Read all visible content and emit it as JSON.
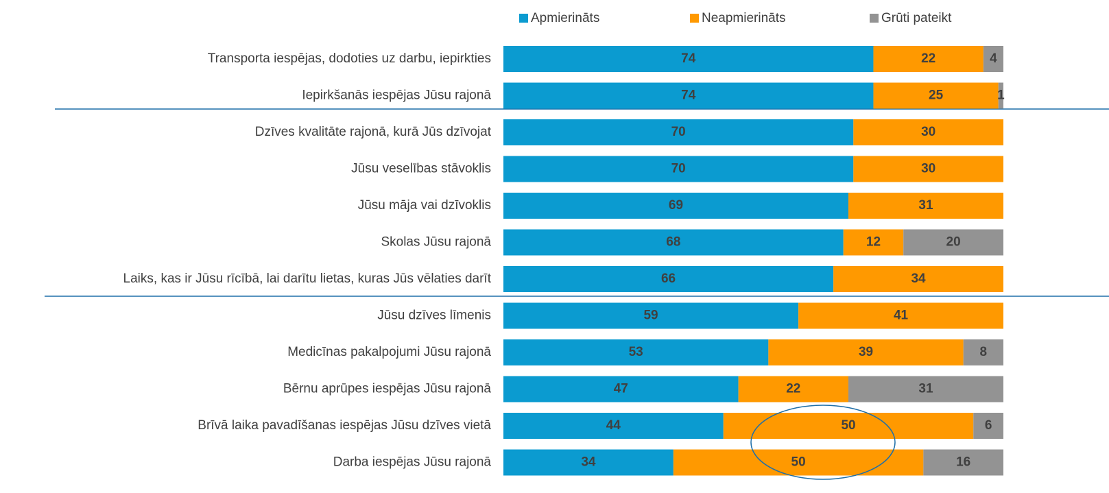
{
  "chart_data": {
    "type": "bar",
    "orientation": "horizontal",
    "stacked": true,
    "legend": "top",
    "categories": [
      "Transporta iespējas, dodoties uz darbu, iepirkties",
      "Iepirkšanās iespējas Jūsu rajonā",
      "Dzīves kvalitāte rajonā, kurā Jūs dzīvojat",
      "Jūsu veselības stāvoklis",
      "Jūsu māja vai dzīvoklis",
      "Skolas Jūsu rajonā",
      "Laiks, kas ir Jūsu rīcībā, lai darītu lietas, kuras Jūs vēlaties darīt",
      "Jūsu dzīves līmenis",
      "Medicīnas pakalpojumi Jūsu rajonā",
      "Bērnu aprūpes iespējas Jūsu rajonā",
      "Brīvā laika pavadīšanas iespējas Jūsu dzīves vietā",
      "Darba iespējas Jūsu rajonā"
    ],
    "series": [
      {
        "name": "Apmierināts",
        "color": "#0b9bd0",
        "values": [
          74,
          74,
          70,
          70,
          69,
          68,
          66,
          59,
          53,
          47,
          44,
          34
        ]
      },
      {
        "name": "Neapmierināts",
        "color": "#ff9900",
        "values": [
          22,
          25,
          30,
          30,
          31,
          12,
          34,
          41,
          39,
          22,
          50,
          50
        ]
      },
      {
        "name": "Grūti pateikt",
        "color": "#939393",
        "values": [
          4,
          1,
          null,
          null,
          null,
          20,
          null,
          null,
          8,
          31,
          6,
          16
        ]
      }
    ],
    "xlim": [
      0,
      100
    ]
  }
}
